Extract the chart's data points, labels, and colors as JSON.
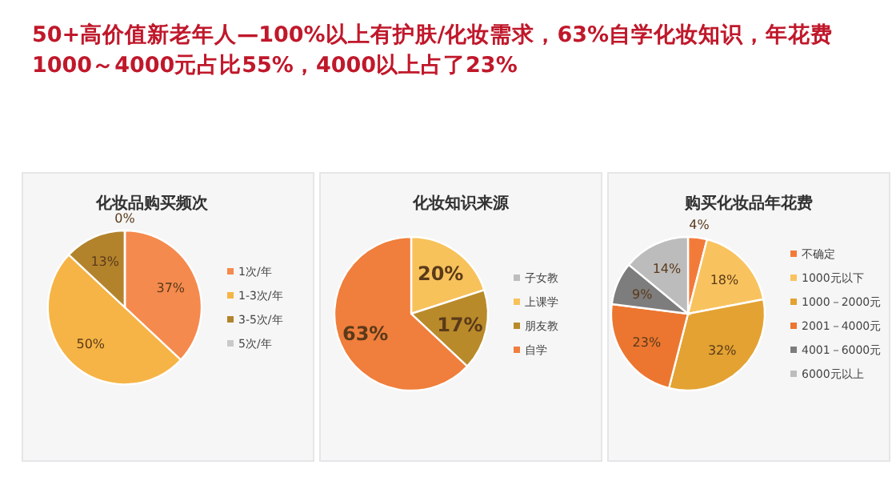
{
  "chart_data": [
    {
      "type": "other",
      "title": "50+高价值新老年人—100%以上有护肤/化妆需求，63%自学化妆知识，年花费1000～4000元占比55%，4000以上占了23%"
    },
    {
      "type": "pie",
      "title": "化妆品购买频次",
      "categories": [
        "1次/年",
        "1-3次/年",
        "3-5次/年",
        "5次/年"
      ],
      "values": [
        37,
        50,
        13,
        0
      ],
      "colors": [
        "#f58a4e",
        "#f6b446",
        "#b3832c",
        "#c9c9c9"
      ],
      "value_labels": [
        "37%",
        "50%",
        "13%",
        "0%"
      ],
      "legend": "right"
    },
    {
      "type": "pie",
      "title": "化妆知识来源",
      "categories": [
        "子女教",
        "上课学",
        "朋友教",
        "自学"
      ],
      "values": [
        0,
        20,
        17,
        63
      ],
      "colors": [
        "#bdbdbd",
        "#f7c25a",
        "#b98a2a",
        "#f07e3c"
      ],
      "value_labels": [
        null,
        "20%",
        "17%",
        "63%"
      ],
      "legend": "right"
    },
    {
      "type": "pie",
      "title": "购买化妆品年花费",
      "categories": [
        "不确定",
        "1000元以下",
        "1000－2000元",
        "2001－4000元",
        "4001－6000元",
        "6000元以上"
      ],
      "values": [
        4,
        18,
        32,
        23,
        9,
        14
      ],
      "colors": [
        "#f37b3a",
        "#f8c35e",
        "#e3a232",
        "#ec7630",
        "#7d7d7d",
        "#bcbcbc"
      ],
      "value_labels": [
        "4%",
        "18%",
        "32%",
        "23%",
        "9%",
        "14%"
      ],
      "legend": "right"
    }
  ]
}
